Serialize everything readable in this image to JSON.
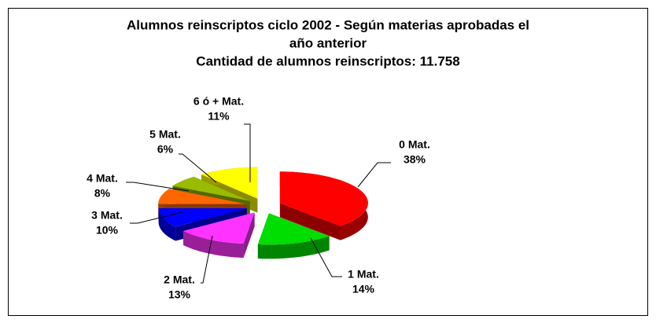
{
  "chart_data": {
    "type": "pie",
    "title": [
      "Alumnos reinscriptos ciclo 2002 - Según materias aprobadas el",
      "año anterior"
    ],
    "subtitle": "Cantidad de alumnos reinscriptos: 11.758",
    "categories": [
      "0 Mat.",
      "1 Mat.",
      "2 Mat.",
      "3 Mat.",
      "4 Mat.",
      "5 Mat.",
      "6 ó + Mat."
    ],
    "values": [
      38,
      14,
      13,
      10,
      8,
      6,
      11
    ],
    "value_labels": [
      "38%",
      "14%",
      "13%",
      "10%",
      "8%",
      "6%",
      "11%"
    ],
    "colors": [
      "#ff0000",
      "#00dd00",
      "#ff33ff",
      "#0000ff",
      "#ff6600",
      "#99bb00",
      "#ffff00"
    ]
  }
}
